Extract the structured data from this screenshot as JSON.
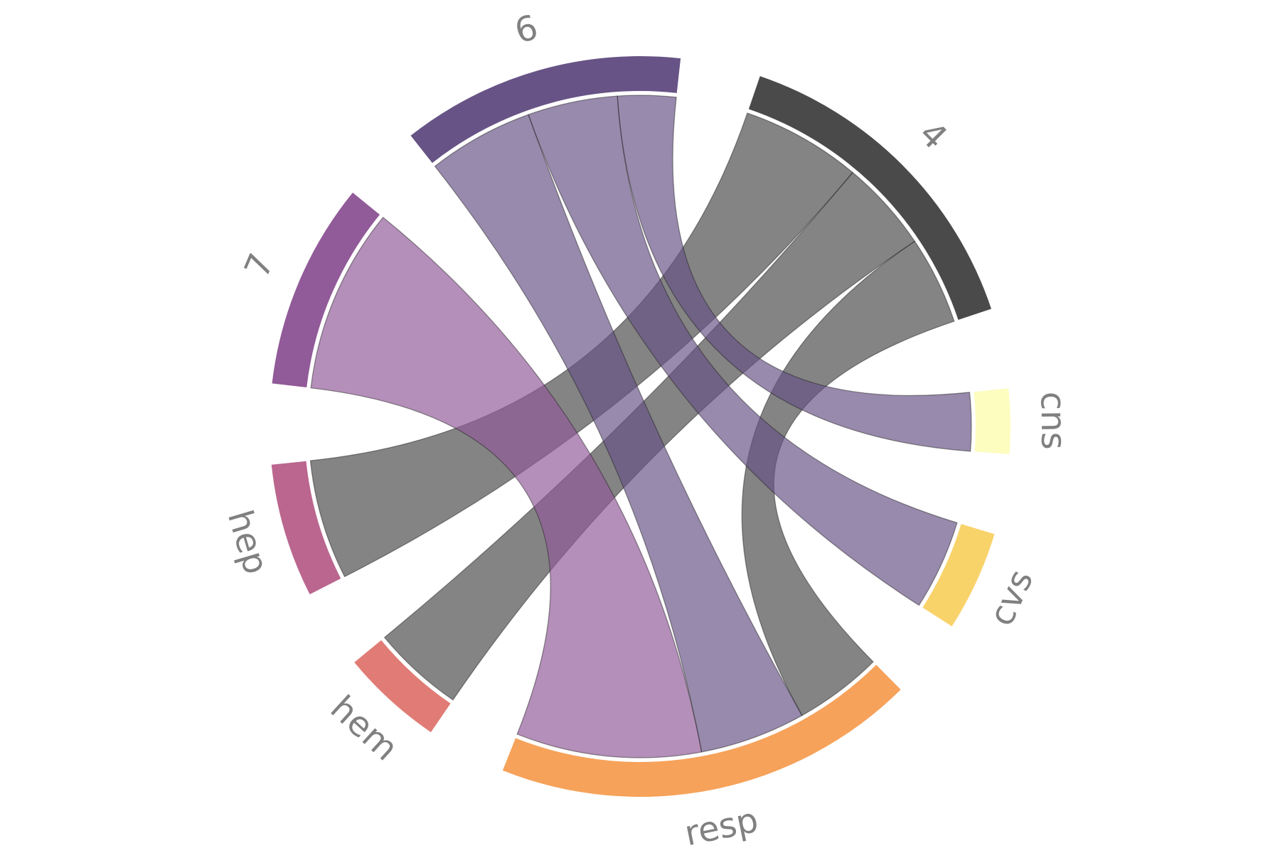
{
  "chart_data": {
    "type": "chord",
    "segments": [
      {
        "id": "4",
        "label": "4",
        "color": "#4a4a4a"
      },
      {
        "id": "cns",
        "label": "cns",
        "color": "#fcfdbf"
      },
      {
        "id": "cvs",
        "label": "cvs",
        "color": "#f8d36a"
      },
      {
        "id": "resp",
        "label": "resp",
        "color": "#f6a25a"
      },
      {
        "id": "hem",
        "label": "hem",
        "color": "#e07c75"
      },
      {
        "id": "hep",
        "label": "hep",
        "color": "#ba668e"
      },
      {
        "id": "7",
        "label": "7",
        "color": "#915a98"
      },
      {
        "id": "6",
        "label": "6",
        "color": "#675385"
      }
    ],
    "links": [
      {
        "source": "4",
        "target": "hep",
        "value": 6.8
      },
      {
        "source": "4",
        "target": "hem",
        "value": 5.2
      },
      {
        "source": "4",
        "target": "resp",
        "value": 5.0
      },
      {
        "source": "6",
        "target": "resp",
        "value": 6.0
      },
      {
        "source": "6",
        "target": "cvs",
        "value": 5.1
      },
      {
        "source": "6",
        "target": "cns",
        "value": 3.3
      },
      {
        "source": "7",
        "target": "resp",
        "value": 10.5
      }
    ],
    "colors": {
      "ribbon_opacity": 0.68,
      "label_color": "#808080"
    }
  }
}
